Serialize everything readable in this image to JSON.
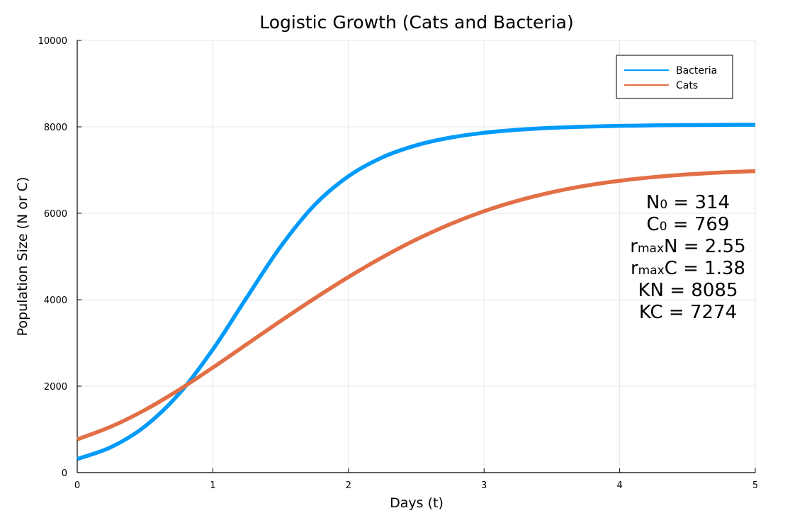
{
  "chart_data": {
    "type": "line",
    "title": "Logistic Growth (Cats and Bacteria)",
    "xlabel": "Days (t)",
    "ylabel": "Population Size (N or C)",
    "xlim": [
      0,
      5
    ],
    "ylim": [
      0,
      10000
    ],
    "xticks": [
      0,
      1,
      2,
      3,
      4,
      5
    ],
    "yticks": [
      0,
      2000,
      4000,
      6000,
      8000,
      10000
    ],
    "grid": true,
    "legend_position": "top-right",
    "x": [
      0,
      0.25,
      0.5,
      0.75,
      1.0,
      1.25,
      1.5,
      1.75,
      2.0,
      2.25,
      2.5,
      2.75,
      3.0,
      3.25,
      3.5,
      3.75,
      4.0,
      4.25,
      4.5,
      4.75,
      5.0
    ],
    "series": [
      {
        "name": "Bacteria",
        "color": "#009AFA",
        "values": [
          314,
          591,
          1072,
          1820,
          2849,
          4051,
          5229,
          6191,
          6857,
          7294,
          7573,
          7750,
          7862,
          7932,
          7977,
          8005,
          8022,
          8034,
          8041,
          8045,
          8048
        ]
      },
      {
        "name": "Cats",
        "color": "#E26F46",
        "values": [
          769,
          1065,
          1451,
          1914,
          2430,
          2970,
          3508,
          4030,
          4525,
          4982,
          5392,
          5748,
          6048,
          6292,
          6487,
          6638,
          6752,
          6837,
          6899,
          6944,
          6976
        ]
      }
    ],
    "annotations": [
      {
        "base": "N",
        "sub": "0",
        "rest": " = 314"
      },
      {
        "base": "C",
        "sub": "0",
        "rest": " = 769"
      },
      {
        "base": "r",
        "sub": "max",
        "rest": "N = 2.55"
      },
      {
        "base": "r",
        "sub": "max",
        "rest": "C = 1.38"
      },
      {
        "base": "KN = 8085",
        "sub": "",
        "rest": ""
      },
      {
        "base": "KC = 7274",
        "sub": "",
        "rest": ""
      }
    ]
  }
}
